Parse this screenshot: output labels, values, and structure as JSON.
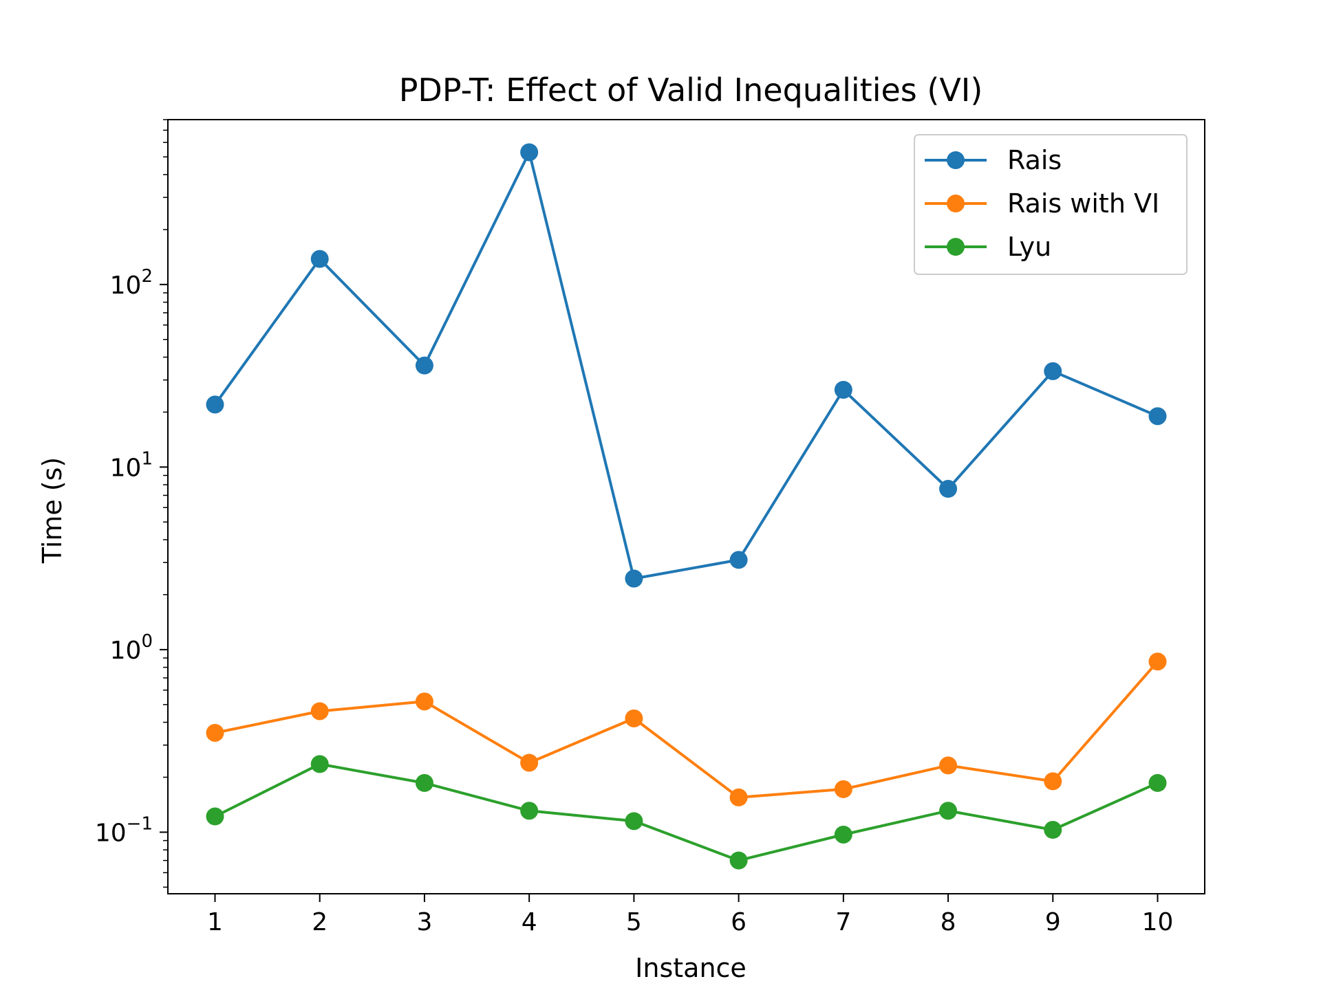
{
  "chart_data": {
    "type": "line",
    "title": "PDP-T: Effect of Valid Inequalities (VI)",
    "xlabel": "Instance",
    "ylabel": "Time (s)",
    "yscale": "log",
    "xlim": [
      0.55,
      10.45
    ],
    "ylim": [
      0.046,
      800
    ],
    "x": [
      1,
      2,
      3,
      4,
      5,
      6,
      7,
      8,
      9,
      10
    ],
    "x_ticks": [
      {
        "value": 1,
        "label": "1"
      },
      {
        "value": 2,
        "label": "2"
      },
      {
        "value": 3,
        "label": "3"
      },
      {
        "value": 4,
        "label": "4"
      },
      {
        "value": 5,
        "label": "5"
      },
      {
        "value": 6,
        "label": "6"
      },
      {
        "value": 7,
        "label": "7"
      },
      {
        "value": 8,
        "label": "8"
      },
      {
        "value": 9,
        "label": "9"
      },
      {
        "value": 10,
        "label": "10"
      }
    ],
    "y_ticks": [
      {
        "value": 0.1,
        "base": "10",
        "exp": "−1"
      },
      {
        "value": 1,
        "base": "10",
        "exp": "0"
      },
      {
        "value": 10,
        "base": "10",
        "exp": "1"
      },
      {
        "value": 100,
        "base": "10",
        "exp": "2"
      }
    ],
    "series": [
      {
        "name": "Rais",
        "color": "#1f77b4",
        "values": [
          22,
          138,
          36,
          530,
          2.45,
          3.1,
          26.5,
          7.6,
          33.5,
          19
        ]
      },
      {
        "name": "Rais with VI",
        "color": "#ff7f0e",
        "values": [
          0.35,
          0.46,
          0.52,
          0.24,
          0.42,
          0.155,
          0.172,
          0.232,
          0.19,
          0.86
        ]
      },
      {
        "name": "Lyu",
        "color": "#2ca02c",
        "values": [
          0.122,
          0.236,
          0.186,
          0.131,
          0.115,
          0.07,
          0.097,
          0.131,
          0.103,
          0.186
        ]
      }
    ],
    "legend": {
      "position": "top-right"
    },
    "grid": false
  }
}
